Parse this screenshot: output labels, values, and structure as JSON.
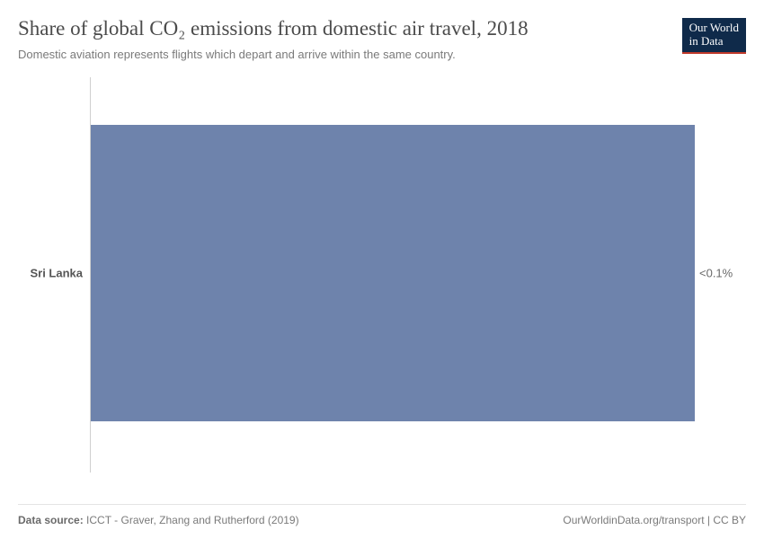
{
  "header": {
    "title": "Share of global CO₂ emissions from domestic air travel, 2018",
    "subtitle": "Domestic aviation represents flights which depart and arrive within the same country.",
    "logo_line1": "Our World",
    "logo_line2": "in Data"
  },
  "chart": {
    "type": "bar",
    "orientation": "horizontal",
    "categories": [
      "Sri Lanka"
    ],
    "value_labels": [
      "<0.1%"
    ],
    "bar_color": "#6e83ac",
    "axis_color": "#cfcfcf",
    "background_color": "#ffffff",
    "bar_top_pct": 12,
    "bar_height_pct": 75,
    "bar_width_pct": 100,
    "label_fontsize": 13,
    "label_color": "#555555",
    "value_color": "#6a6a6a"
  },
  "footer": {
    "source_label": "Data source:",
    "source_text": "ICCT - Graver, Zhang and Rutherford (2019)",
    "attribution": "OurWorldinData.org/transport | CC BY"
  },
  "style": {
    "title_fontsize": 23,
    "title_color": "#4b4b4b",
    "subtitle_fontsize": 13,
    "subtitle_color": "#7a7a7a",
    "logo_bg": "#0f2a4a",
    "logo_underline": "#c0392b",
    "footer_fontsize": 12,
    "footer_color": "#7a7a7a",
    "divider_color": "#e4e4e4"
  }
}
